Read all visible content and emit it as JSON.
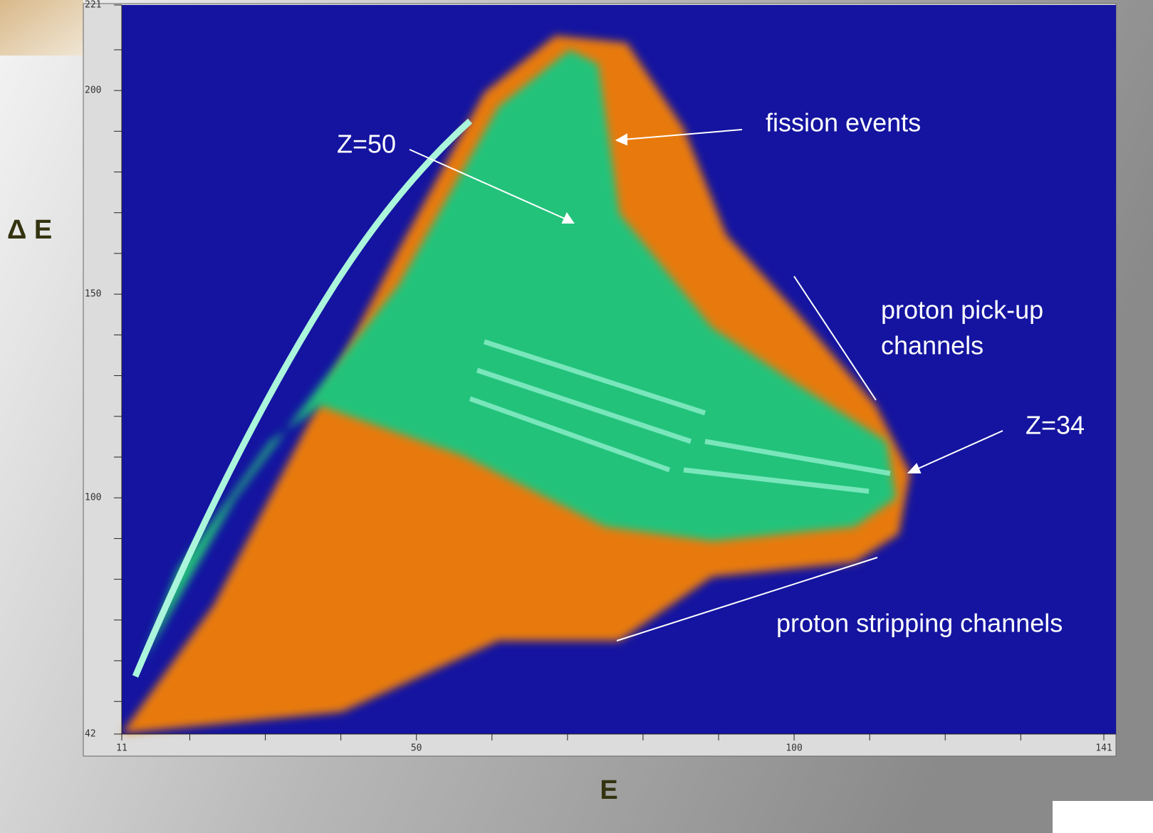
{
  "chart_data": {
    "type": "histogram2d",
    "xlabel": "E",
    "ylabel": "Δ E",
    "xlim": [
      11,
      141
    ],
    "ylim": [
      42,
      221
    ],
    "xticks": [
      11,
      50,
      100,
      141
    ],
    "yticks": [
      42,
      100,
      150,
      200,
      221
    ],
    "xminor": [
      20,
      30,
      40,
      60,
      70,
      80,
      90,
      110,
      120,
      130
    ],
    "yminor": [
      50,
      60,
      70,
      80,
      90,
      110,
      120,
      130,
      140,
      160,
      170,
      180,
      190,
      210
    ],
    "annotations": [
      "fission events",
      "Z=50",
      "proton pick-up",
      "channels",
      "Z=34",
      "proton stripping channels"
    ]
  }
}
